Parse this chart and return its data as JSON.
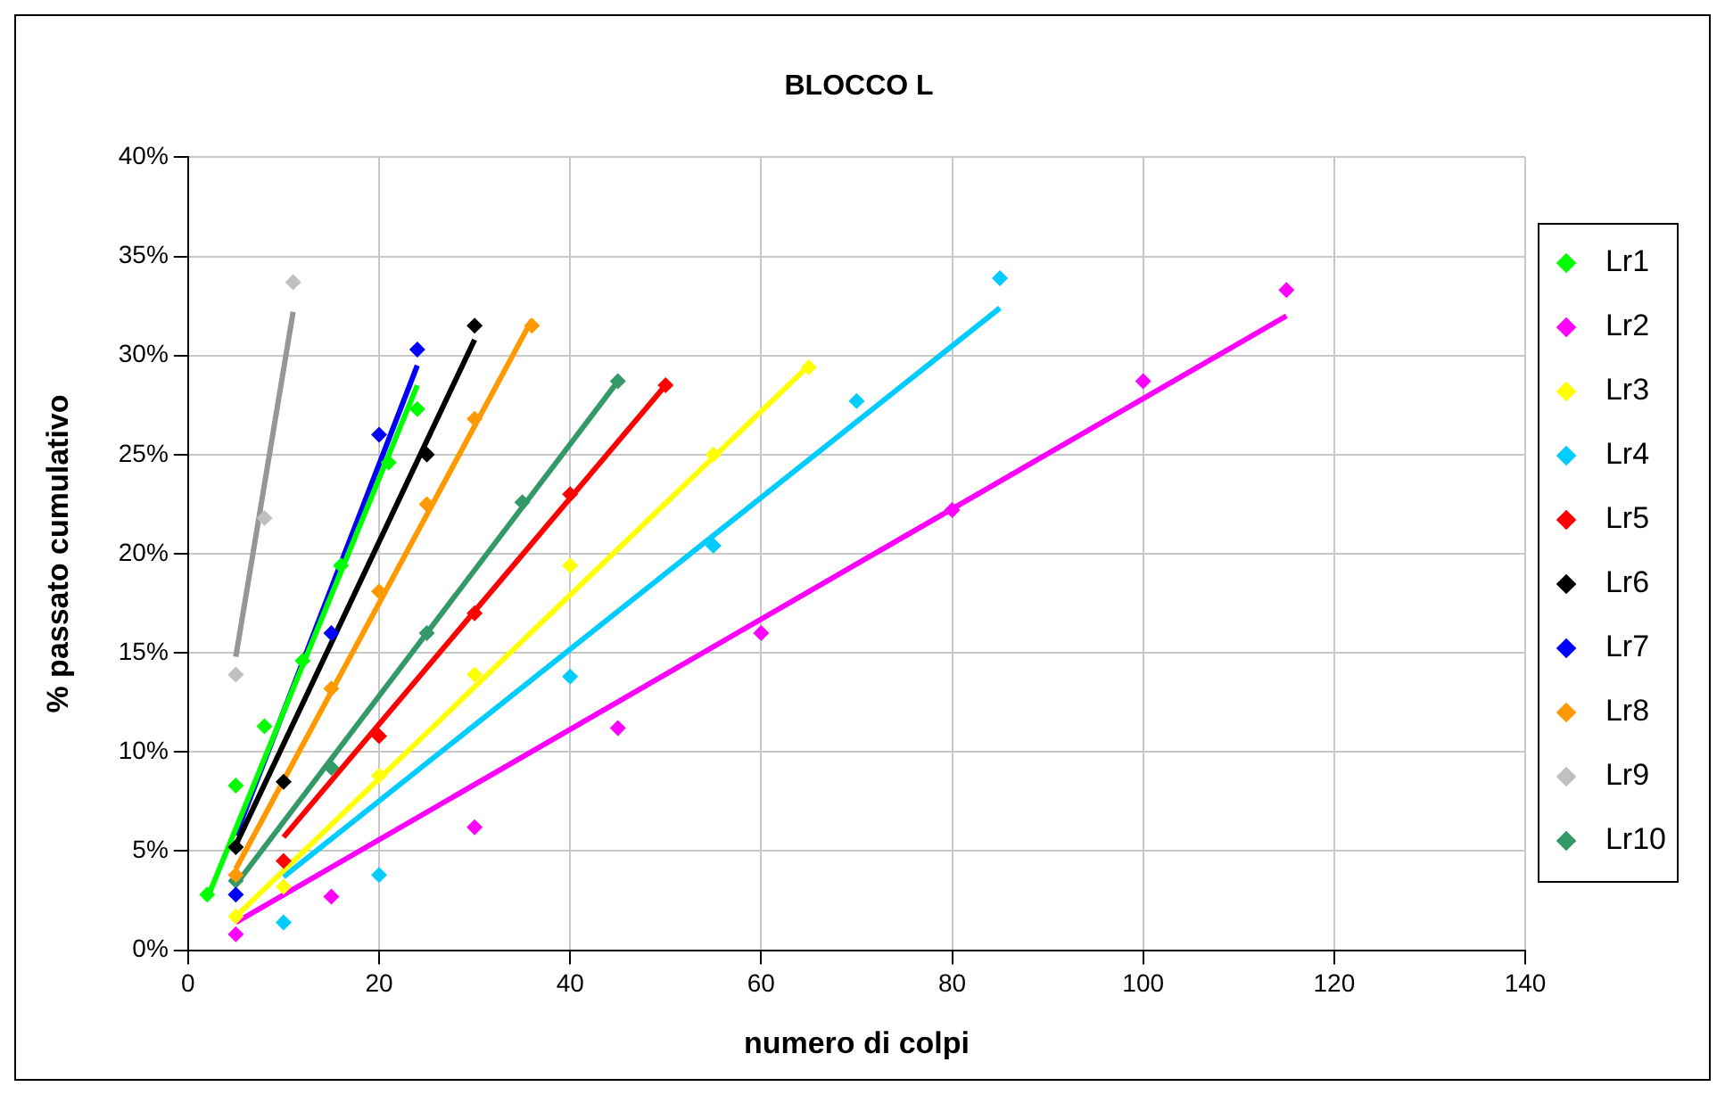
{
  "chart_data": {
    "type": "scatter",
    "title": "BLOCCO L",
    "xlabel": "numero di colpi",
    "ylabel": "% passato cumulativo",
    "xlim": [
      0,
      140
    ],
    "xticks": [
      0,
      20,
      40,
      60,
      80,
      100,
      120,
      140
    ],
    "ylim": [
      0,
      40
    ],
    "yticks": [
      {
        "value": 0,
        "label": "0%"
      },
      {
        "value": 5,
        "label": "5%"
      },
      {
        "value": 10,
        "label": "10%"
      },
      {
        "value": 15,
        "label": "15%"
      },
      {
        "value": 20,
        "label": "20%"
      },
      {
        "value": 25,
        "label": "25%"
      },
      {
        "value": 30,
        "label": "30%"
      },
      {
        "value": 35,
        "label": "35%"
      },
      {
        "value": 40,
        "label": "40%"
      }
    ],
    "grid": true,
    "legend": "right",
    "marker": "diamond",
    "series": [
      {
        "name": "Lr1",
        "type": "scatter",
        "color": "#00ff00",
        "x": [
          2,
          5,
          8,
          12,
          16,
          21,
          24
        ],
        "values": [
          2.8,
          8.3,
          11.3,
          14.6,
          19.4,
          24.6,
          27.3
        ]
      },
      {
        "name": "Lr2",
        "type": "scatter",
        "color": "#ff00ff",
        "x": [
          5,
          15,
          30,
          45,
          60,
          80,
          100,
          115
        ],
        "values": [
          0.8,
          2.7,
          6.2,
          11.2,
          16,
          22.2,
          28.7,
          33.3
        ]
      },
      {
        "name": "Lr3",
        "type": "scatter",
        "color": "#ffff00",
        "x": [
          5,
          10,
          20,
          30,
          40,
          55,
          65
        ],
        "values": [
          1.7,
          3.2,
          8.8,
          13.9,
          19.4,
          25,
          29.4
        ]
      },
      {
        "name": "Lr4",
        "type": "scatter",
        "color": "#00ccff",
        "x": [
          10,
          20,
          40,
          55,
          70,
          85
        ],
        "values": [
          1.4,
          3.8,
          13.8,
          20.4,
          27.7,
          33.9
        ]
      },
      {
        "name": "Lr5",
        "type": "scatter",
        "color": "#ff0000",
        "x": [
          10,
          20,
          30,
          40,
          50
        ],
        "values": [
          4.5,
          10.8,
          17,
          23,
          28.5
        ]
      },
      {
        "name": "Lr6",
        "type": "scatter",
        "color": "#000000",
        "x": [
          5,
          10,
          25,
          30
        ],
        "values": [
          5.2,
          8.5,
          25,
          31.5
        ]
      },
      {
        "name": "Lr7",
        "type": "scatter",
        "color": "#0000ff",
        "x": [
          5,
          15,
          20,
          24
        ],
        "values": [
          2.8,
          16,
          26,
          30.3
        ]
      },
      {
        "name": "Lr8",
        "type": "scatter",
        "color": "#ff9900",
        "x": [
          5,
          15,
          20,
          25,
          30,
          36
        ],
        "values": [
          3.8,
          13.2,
          18.1,
          22.5,
          26.8,
          31.5
        ]
      },
      {
        "name": "Lr9",
        "type": "scatter",
        "color": "#c0c0c0",
        "x": [
          5,
          8,
          11
        ],
        "values": [
          13.9,
          21.8,
          33.7
        ]
      },
      {
        "name": "Lr10",
        "type": "scatter",
        "color": "#339966",
        "x": [
          5,
          15,
          25,
          35,
          45
        ],
        "values": [
          3.5,
          9.2,
          16,
          22.6,
          28.7
        ]
      },
      {
        "type": "line",
        "marker": "none",
        "color": "#00ff00",
        "x": [
          2,
          24
        ],
        "values": [
          2.6,
          28.5
        ]
      },
      {
        "type": "line",
        "marker": "none",
        "color": "#ff00ff",
        "x": [
          5,
          115
        ],
        "values": [
          1.4,
          32
        ]
      },
      {
        "type": "line",
        "marker": "none",
        "color": "#ffff00",
        "x": [
          5,
          65
        ],
        "values": [
          1.7,
          29.5
        ]
      },
      {
        "type": "line",
        "marker": "none",
        "color": "#00ccff",
        "x": [
          10,
          85
        ],
        "values": [
          3.7,
          32.4
        ]
      },
      {
        "type": "line",
        "marker": "none",
        "color": "#ff0000",
        "x": [
          10,
          50
        ],
        "values": [
          5.7,
          28.5
        ]
      },
      {
        "type": "line",
        "marker": "none",
        "color": "#000000",
        "x": [
          5,
          30
        ],
        "values": [
          5.3,
          30.8
        ]
      },
      {
        "type": "line",
        "marker": "none",
        "color": "#0000ff",
        "x": [
          5,
          24
        ],
        "values": [
          5.8,
          29.5
        ]
      },
      {
        "type": "line",
        "marker": "none",
        "color": "#ff9900",
        "x": [
          5,
          36
        ],
        "values": [
          4.1,
          31.8
        ]
      },
      {
        "type": "line",
        "marker": "none",
        "color": "#969696",
        "x": [
          5,
          11
        ],
        "values": [
          14.8,
          32.2
        ]
      },
      {
        "type": "line",
        "marker": "none",
        "color": "#339966",
        "x": [
          5,
          45
        ],
        "values": [
          3.3,
          28.7
        ]
      }
    ]
  }
}
